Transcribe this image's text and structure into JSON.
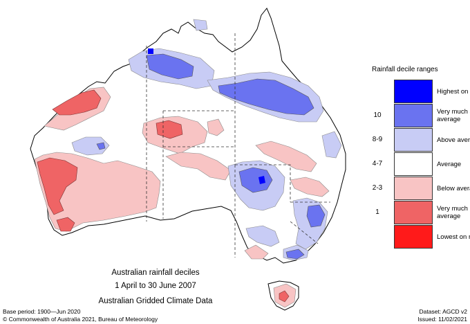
{
  "legend": {
    "title": "Rainfall decile ranges",
    "items": [
      {
        "range": "",
        "label": "Highest on record",
        "color": "#0000ff"
      },
      {
        "range": "10",
        "label": "Very much above average",
        "color": "#6a73f0"
      },
      {
        "range": "8-9",
        "label": "Above average",
        "color": "#c8ccf5"
      },
      {
        "range": "4-7",
        "label": "Average",
        "color": "#ffffff"
      },
      {
        "range": "2-3",
        "label": "Below average",
        "color": "#f8c4c4"
      },
      {
        "range": "1",
        "label": "Very much below average",
        "color": "#ef6465"
      },
      {
        "range": "",
        "label": "Lowest on record",
        "color": "#ff1a1a"
      }
    ]
  },
  "title": {
    "line1": "Australian rainfall deciles",
    "line2": "1 April to 30 June 2007",
    "line3": "Australian Gridded Climate Data"
  },
  "footer": {
    "base_period": "Base period: 1900—Jun 2020",
    "dataset": "Dataset: AGCD v2",
    "copyright": "© Commonwealth of Australia 2021, Bureau of Meteorology",
    "issued": "Issued: 11/02/2021"
  }
}
